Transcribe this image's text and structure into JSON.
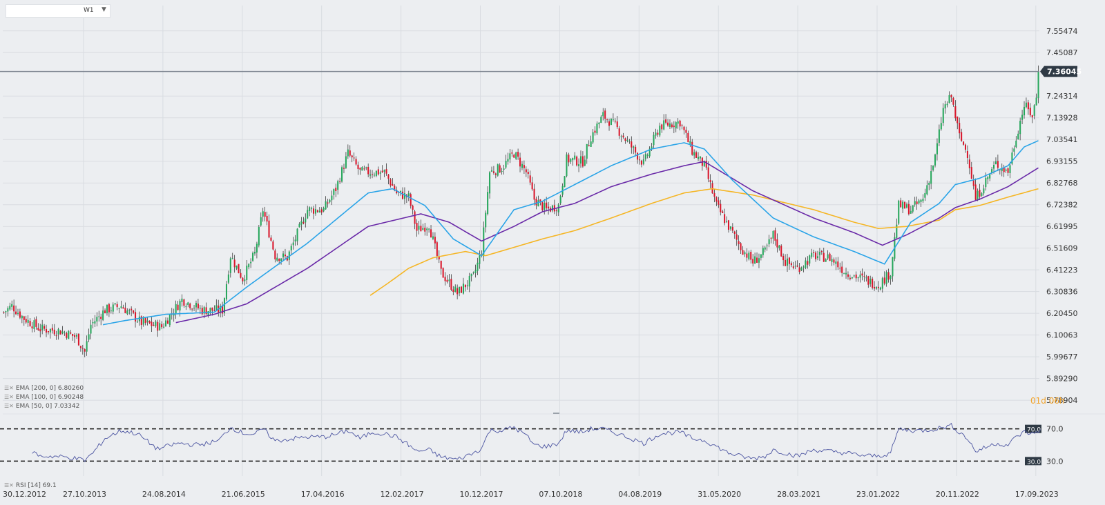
{
  "timeframe": {
    "value": "W1"
  },
  "countdown": "01d 06h",
  "indicators": [
    {
      "id": "ema200",
      "label": "EMA [200, 0] 6.80260",
      "color": "#f5b626"
    },
    {
      "id": "ema100",
      "label": "EMA [100, 0] 6.90248",
      "color": "#6a2aa8"
    },
    {
      "id": "ema50",
      "label": "EMA [50, 0] 7.03342",
      "color": "#2aa4e8"
    }
  ],
  "rsi_label": "RSI [14] 69.1",
  "chart_data": [
    {
      "type": "candlestick",
      "title": "",
      "xlabel": "",
      "ylabel": "",
      "last_price": 7.36045,
      "ylim": [
        5.74,
        7.61
      ],
      "y_ticks": [
        "7.55474",
        "7.45087",
        "7.36045",
        "7.24314",
        "7.13928",
        "7.03541",
        "6.93155",
        "6.82768",
        "6.72382",
        "6.61995",
        "6.51609",
        "6.41223",
        "6.30836",
        "6.20450",
        "6.10063",
        "5.99677",
        "5.89290",
        "5.78904"
      ],
      "x_ticks": [
        "30.12.2012",
        "27.10.2013",
        "24.08.2014",
        "21.06.2015",
        "17.04.2016",
        "12.02.2017",
        "10.12.2017",
        "07.10.2018",
        "04.08.2019",
        "31.05.2020",
        "28.03.2021",
        "23.01.2022",
        "20.11.2022",
        "17.09.2023"
      ],
      "colors": {
        "up": "#26a65b",
        "down": "#d9162b",
        "grid": "#d9dce1",
        "last_line": "#7d8590"
      },
      "price_anchors": [
        [
          0,
          6.21
        ],
        [
          4,
          6.24
        ],
        [
          10,
          6.18
        ],
        [
          18,
          6.13
        ],
        [
          28,
          6.12
        ],
        [
          36,
          6.09
        ],
        [
          40,
          6.02
        ],
        [
          43,
          6.15
        ],
        [
          50,
          6.22
        ],
        [
          58,
          6.24
        ],
        [
          68,
          6.16
        ],
        [
          78,
          6.14
        ],
        [
          88,
          6.27
        ],
        [
          98,
          6.22
        ],
        [
          108,
          6.22
        ],
        [
          112,
          6.48
        ],
        [
          118,
          6.37
        ],
        [
          124,
          6.49
        ],
        [
          128,
          6.7
        ],
        [
          134,
          6.48
        ],
        [
          140,
          6.47
        ],
        [
          150,
          6.7
        ],
        [
          158,
          6.7
        ],
        [
          164,
          6.8
        ],
        [
          170,
          6.97
        ],
        [
          176,
          6.88
        ],
        [
          182,
          6.88
        ],
        [
          188,
          6.88
        ],
        [
          194,
          6.78
        ],
        [
          200,
          6.76
        ],
        [
          204,
          6.6
        ],
        [
          210,
          6.63
        ],
        [
          216,
          6.4
        ],
        [
          224,
          6.3
        ],
        [
          232,
          6.38
        ],
        [
          236,
          6.5
        ],
        [
          240,
          6.88
        ],
        [
          246,
          6.9
        ],
        [
          252,
          6.97
        ],
        [
          258,
          6.88
        ],
        [
          262,
          6.75
        ],
        [
          268,
          6.7
        ],
        [
          274,
          6.72
        ],
        [
          278,
          6.94
        ],
        [
          286,
          6.93
        ],
        [
          290,
          7.05
        ],
        [
          296,
          7.15
        ],
        [
          302,
          7.1
        ],
        [
          310,
          7.0
        ],
        [
          316,
          6.92
        ],
        [
          324,
          7.1
        ],
        [
          334,
          7.12
        ],
        [
          340,
          6.98
        ],
        [
          346,
          6.91
        ],
        [
          352,
          6.72
        ],
        [
          358,
          6.62
        ],
        [
          364,
          6.52
        ],
        [
          370,
          6.45
        ],
        [
          376,
          6.5
        ],
        [
          380,
          6.58
        ],
        [
          386,
          6.45
        ],
        [
          392,
          6.42
        ],
        [
          400,
          6.48
        ],
        [
          408,
          6.47
        ],
        [
          416,
          6.4
        ],
        [
          424,
          6.37
        ],
        [
          432,
          6.34
        ],
        [
          438,
          6.4
        ],
        [
          442,
          6.72
        ],
        [
          448,
          6.7
        ],
        [
          454,
          6.75
        ],
        [
          460,
          6.95
        ],
        [
          464,
          7.18
        ],
        [
          468,
          7.24
        ],
        [
          472,
          7.05
        ],
        [
          476,
          6.97
        ],
        [
          480,
          6.75
        ],
        [
          484,
          6.82
        ],
        [
          490,
          6.92
        ],
        [
          496,
          6.88
        ],
        [
          500,
          7.05
        ],
        [
          504,
          7.2
        ],
        [
          508,
          7.15
        ],
        [
          512,
          7.32
        ]
      ],
      "ema_anchors": {
        "ema50": [
          [
            49,
            6.15
          ],
          [
            60,
            6.17
          ],
          [
            80,
            6.2
          ],
          [
            104,
            6.21
          ],
          [
            120,
            6.33
          ],
          [
            150,
            6.54
          ],
          [
            180,
            6.78
          ],
          [
            192,
            6.8
          ],
          [
            208,
            6.72
          ],
          [
            222,
            6.56
          ],
          [
            236,
            6.48
          ],
          [
            252,
            6.7
          ],
          [
            266,
            6.74
          ],
          [
            282,
            6.82
          ],
          [
            300,
            6.91
          ],
          [
            320,
            6.99
          ],
          [
            336,
            7.02
          ],
          [
            346,
            6.99
          ],
          [
            360,
            6.84
          ],
          [
            380,
            6.66
          ],
          [
            400,
            6.57
          ],
          [
            420,
            6.5
          ],
          [
            435,
            6.44
          ],
          [
            448,
            6.64
          ],
          [
            462,
            6.73
          ],
          [
            470,
            6.82
          ],
          [
            482,
            6.85
          ],
          [
            496,
            6.91
          ],
          [
            504,
            7.0
          ],
          [
            511,
            7.03
          ]
        ],
        "ema100": [
          [
            85,
            6.16
          ],
          [
            104,
            6.2
          ],
          [
            120,
            6.25
          ],
          [
            150,
            6.42
          ],
          [
            180,
            6.62
          ],
          [
            206,
            6.68
          ],
          [
            220,
            6.64
          ],
          [
            236,
            6.55
          ],
          [
            252,
            6.62
          ],
          [
            266,
            6.69
          ],
          [
            282,
            6.73
          ],
          [
            300,
            6.81
          ],
          [
            320,
            6.87
          ],
          [
            336,
            6.91
          ],
          [
            346,
            6.93
          ],
          [
            370,
            6.79
          ],
          [
            400,
            6.66
          ],
          [
            420,
            6.59
          ],
          [
            434,
            6.53
          ],
          [
            446,
            6.58
          ],
          [
            462,
            6.66
          ],
          [
            470,
            6.71
          ],
          [
            482,
            6.75
          ],
          [
            496,
            6.81
          ],
          [
            511,
            6.9
          ]
        ],
        "ema200": [
          [
            181,
            6.29
          ],
          [
            190,
            6.35
          ],
          [
            200,
            6.42
          ],
          [
            212,
            6.47
          ],
          [
            228,
            6.5
          ],
          [
            238,
            6.48
          ],
          [
            252,
            6.52
          ],
          [
            266,
            6.56
          ],
          [
            282,
            6.6
          ],
          [
            300,
            6.66
          ],
          [
            320,
            6.73
          ],
          [
            336,
            6.78
          ],
          [
            350,
            6.8
          ],
          [
            370,
            6.77
          ],
          [
            400,
            6.7
          ],
          [
            420,
            6.64
          ],
          [
            432,
            6.61
          ],
          [
            446,
            6.62
          ],
          [
            462,
            6.65
          ],
          [
            470,
            6.7
          ],
          [
            482,
            6.72
          ],
          [
            496,
            6.76
          ],
          [
            511,
            6.8
          ]
        ]
      }
    },
    {
      "type": "line",
      "title": "",
      "xlabel": "",
      "ylabel": "",
      "ylim": [
        20,
        80
      ],
      "y_ticks": [
        "70.0",
        "30.0"
      ],
      "levels": [
        70,
        30
      ],
      "color": "#4a53a0",
      "rsi_anchors": [
        [
          14,
          42
        ],
        [
          18,
          36
        ],
        [
          24,
          36
        ],
        [
          30,
          35
        ],
        [
          36,
          33
        ],
        [
          40,
          31
        ],
        [
          44,
          40
        ],
        [
          50,
          58
        ],
        [
          58,
          68
        ],
        [
          66,
          64
        ],
        [
          76,
          45
        ],
        [
          86,
          52
        ],
        [
          96,
          50
        ],
        [
          106,
          55
        ],
        [
          112,
          72
        ],
        [
          118,
          65
        ],
        [
          124,
          63
        ],
        [
          128,
          70
        ],
        [
          134,
          55
        ],
        [
          140,
          57
        ],
        [
          150,
          60
        ],
        [
          158,
          60
        ],
        [
          164,
          63
        ],
        [
          170,
          68
        ],
        [
          176,
          58
        ],
        [
          182,
          66
        ],
        [
          188,
          64
        ],
        [
          194,
          60
        ],
        [
          200,
          50
        ],
        [
          204,
          42
        ],
        [
          210,
          44
        ],
        [
          216,
          35
        ],
        [
          224,
          32
        ],
        [
          232,
          40
        ],
        [
          236,
          46
        ],
        [
          240,
          68
        ],
        [
          246,
          68
        ],
        [
          252,
          72
        ],
        [
          258,
          62
        ],
        [
          262,
          50
        ],
        [
          268,
          48
        ],
        [
          274,
          52
        ],
        [
          278,
          68
        ],
        [
          286,
          66
        ],
        [
          290,
          70
        ],
        [
          296,
          70
        ],
        [
          302,
          65
        ],
        [
          310,
          58
        ],
        [
          316,
          52
        ],
        [
          324,
          64
        ],
        [
          334,
          66
        ],
        [
          340,
          58
        ],
        [
          346,
          56
        ],
        [
          352,
          48
        ],
        [
          358,
          40
        ],
        [
          364,
          36
        ],
        [
          370,
          33
        ],
        [
          376,
          36
        ],
        [
          380,
          44
        ],
        [
          386,
          40
        ],
        [
          392,
          36
        ],
        [
          400,
          44
        ],
        [
          408,
          42
        ],
        [
          416,
          40
        ],
        [
          424,
          37
        ],
        [
          432,
          36
        ],
        [
          438,
          40
        ],
        [
          442,
          70
        ],
        [
          448,
          68
        ],
        [
          454,
          68
        ],
        [
          460,
          70
        ],
        [
          464,
          72
        ],
        [
          468,
          74
        ],
        [
          472,
          66
        ],
        [
          476,
          58
        ],
        [
          480,
          42
        ],
        [
          484,
          46
        ],
        [
          490,
          52
        ],
        [
          496,
          50
        ],
        [
          500,
          60
        ],
        [
          504,
          66
        ],
        [
          508,
          64
        ],
        [
          512,
          69.1
        ]
      ]
    }
  ]
}
